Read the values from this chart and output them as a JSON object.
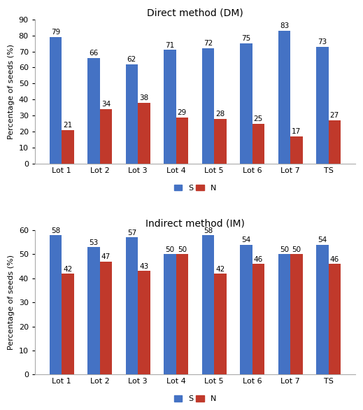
{
  "dm_title": "Direct method (DM)",
  "im_title": "Indirect method (IM)",
  "categories": [
    "Lot 1",
    "Lot 2",
    "Lot 3",
    "Lot 4",
    "Lot 5",
    "Lot 6",
    "Lot 7",
    "TS"
  ],
  "dm_S": [
    79,
    66,
    62,
    71,
    72,
    75,
    83,
    73
  ],
  "dm_N": [
    21,
    34,
    38,
    29,
    28,
    25,
    17,
    27
  ],
  "im_S": [
    58,
    53,
    57,
    50,
    58,
    54,
    50,
    54
  ],
  "im_N": [
    42,
    47,
    43,
    50,
    42,
    46,
    50,
    46
  ],
  "color_S": "#4472C4",
  "color_N": "#C0392B",
  "ylabel": "Percentage of seeds (%)",
  "dm_ylim": [
    0,
    90
  ],
  "im_ylim": [
    0,
    60
  ],
  "dm_yticks": [
    0,
    10,
    20,
    30,
    40,
    50,
    60,
    70,
    80,
    90
  ],
  "im_yticks": [
    0,
    10,
    20,
    30,
    40,
    50,
    60
  ],
  "legend_labels": [
    "S",
    "N"
  ],
  "bar_width": 0.32,
  "title_fontsize": 10,
  "label_fontsize": 8,
  "tick_fontsize": 8,
  "annot_fontsize": 7.5,
  "legend_fontsize": 8,
  "background_color": "#ffffff"
}
